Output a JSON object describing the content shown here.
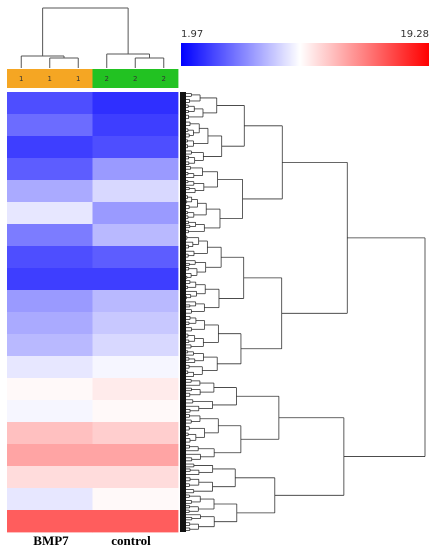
{
  "chart_data": {
    "type": "heatmap",
    "title": "",
    "color_scale": {
      "min": 1.97,
      "max": 19.28,
      "min_label": "1.97",
      "max_label": "19.28",
      "colors": [
        "#0000ff",
        "#ffffff",
        "#ff0000"
      ]
    },
    "columns": [
      {
        "group": "1",
        "condition": "BMP7"
      },
      {
        "group": "1",
        "condition": "BMP7"
      },
      {
        "group": "1",
        "condition": "BMP7"
      },
      {
        "group": "2",
        "condition": "control"
      },
      {
        "group": "2",
        "condition": "control"
      },
      {
        "group": "2",
        "condition": "control"
      }
    ],
    "group_colors": {
      "1": "#f5a623",
      "2": "#22c222"
    },
    "column_labels": [
      "BMP7",
      "control"
    ],
    "column_dendrogram": "((1,1,1),(2,2,2))",
    "row_dendrogram": true,
    "row_blocks": [
      {
        "values": [
          4.5,
          4.5,
          4.5,
          3.5,
          3.5,
          3.5
        ]
      },
      {
        "values": [
          5.5,
          5.5,
          5.5,
          4.0,
          4.0,
          4.0
        ]
      },
      {
        "values": [
          4.0,
          4.0,
          4.0,
          4.5,
          4.5,
          4.5
        ]
      },
      {
        "values": [
          5.0,
          5.0,
          5.0,
          7.0,
          7.0,
          7.0
        ]
      },
      {
        "values": [
          7.5,
          7.5,
          7.5,
          9.0,
          9.0,
          9.0
        ]
      },
      {
        "values": [
          9.5,
          9.5,
          9.5,
          7.0,
          7.0,
          7.0
        ]
      },
      {
        "values": [
          6.0,
          6.0,
          6.0,
          8.0,
          8.0,
          8.0
        ]
      },
      {
        "values": [
          4.5,
          4.5,
          4.5,
          5.0,
          5.0,
          5.0
        ]
      },
      {
        "values": [
          4.0,
          4.0,
          4.0,
          4.0,
          4.0,
          4.0
        ]
      },
      {
        "values": [
          7.0,
          7.0,
          7.0,
          8.0,
          8.0,
          8.0
        ]
      },
      {
        "values": [
          7.5,
          7.5,
          7.5,
          8.5,
          8.5,
          8.5
        ]
      },
      {
        "values": [
          8.0,
          8.0,
          8.0,
          9.0,
          9.0,
          9.0
        ]
      },
      {
        "values": [
          9.5,
          9.5,
          9.5,
          10.0,
          10.0,
          10.0
        ]
      },
      {
        "values": [
          10.5,
          10.5,
          10.5,
          11.0,
          11.0,
          11.0
        ]
      },
      {
        "values": [
          10.0,
          10.0,
          10.0,
          10.5,
          10.5,
          10.5
        ]
      },
      {
        "values": [
          12.5,
          12.5,
          12.5,
          12.0,
          12.0,
          12.0
        ]
      },
      {
        "values": [
          13.5,
          13.5,
          13.5,
          13.5,
          13.5,
          13.5
        ]
      },
      {
        "values": [
          11.5,
          11.5,
          11.5,
          11.5,
          11.5,
          11.5
        ]
      },
      {
        "values": [
          9.5,
          9.5,
          9.5,
          10.5,
          10.5,
          10.5
        ]
      },
      {
        "values": [
          16.0,
          16.0,
          16.0,
          16.0,
          16.0,
          16.0
        ]
      }
    ]
  }
}
